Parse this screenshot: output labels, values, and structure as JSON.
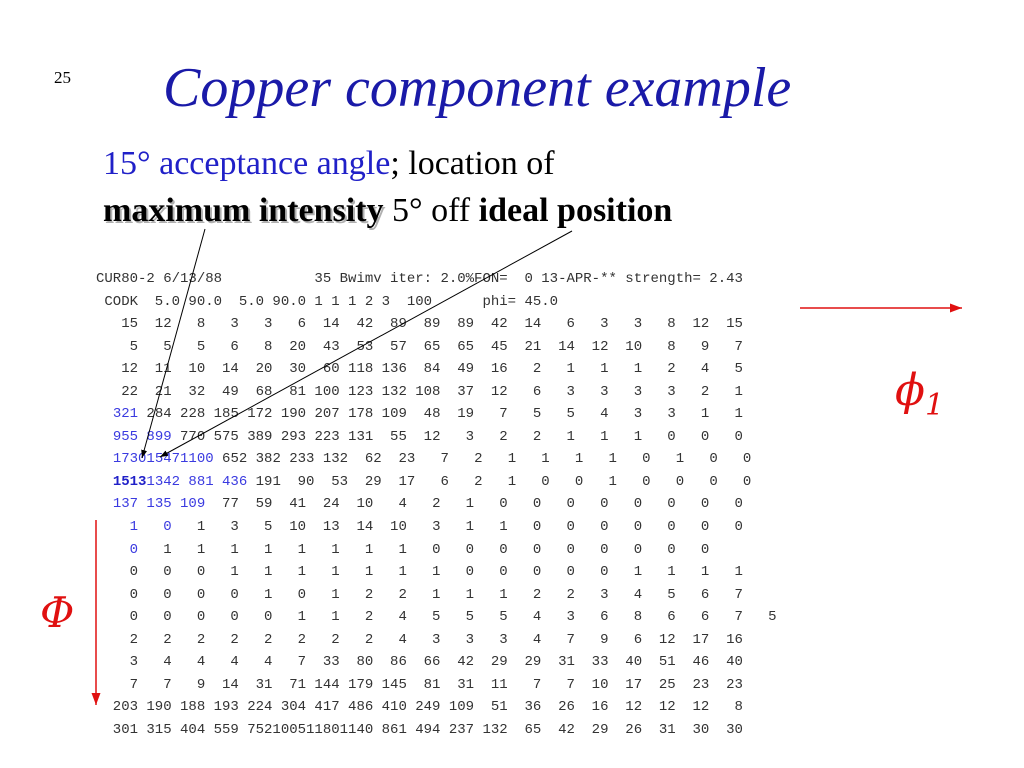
{
  "slide": {
    "number": "25",
    "title": "Copper component example"
  },
  "subtitle": {
    "line1_blue": "15° acceptance angle",
    "line1_rest": "; location of",
    "line2_max": "maximum intensity",
    "line2_mid": " 5° off ",
    "line2_ideal": "ideal position"
  },
  "data": {
    "header1": "CUR80-2 6/13/88           35 Bwimv iter: 2.0%FON=  0 13-APR-** strength= 2.43",
    "header2": " CODK  5.0 90.0  5.0 90.0 1 1 1 2 3  100      phi= 45.0",
    "rows": [
      [
        "   15  12   8   3   3   6  14  42  89  89  89  42  14   6   3   3   8  12  15"
      ],
      [
        "    5   5   5   6   8  20  43  53  57  65  65  45  21  14  12  10   8   9   7"
      ],
      [
        "   12  11  10  14  20  30  60 118 136  84  49  16   2   1   1   1   2   4   5"
      ],
      [
        "   22  21  32  49  68  81 100 123 132 108  37  12   6   3   3   3   3   2   1"
      ],
      [
        "  ",
        "321",
        " 284 228 185 172 190 207 178 109  48  19   7   5   5   4   3   3   1   1"
      ],
      [
        "  ",
        "955 899",
        " 770 575 389 293 223 131  55  12   3   2   2   1   1   1   0   0   0"
      ],
      [
        "  ",
        "173015471100",
        " 652 382 233 132  62  23   7   2   1   1   1   1   0   1   0   0"
      ],
      [
        "  ",
        "1513",
        "",
        "1342 881 436",
        " 191  90  53  29  17   6   2   1   0   0   1   0   0   0   0"
      ],
      [
        "  ",
        "137 135 109",
        "  77  59  41  24  10   4   2   1   0   0   0   0   0   0   0   0"
      ],
      [
        "    ",
        "1   0",
        "   1   3   5  10  13  14  10   3   1   1   0   0   0   0   0   0   0"
      ],
      [
        "    ",
        "0",
        "   1   1   1   1   1   1   1   1   0   0   0   0   0   0   0   0   0"
      ],
      [
        "    0   0   0   1   1   1   1   1   1   1   0   0   0   0   0   1   1   1   1"
      ],
      [
        "    0   0   0   0   1   0   1   2   2   1   1   1   2   2   3   4   5   6   7"
      ],
      [
        "    0   0   0   0   0   1   1   2   4   5   5   5   4   3   6   8   6   6   7   5"
      ],
      [
        "    2   2   2   2   2   2   2   2   4   3   3   3   4   7   9   6  12  17  16"
      ],
      [
        "    3   4   4   4   4   7  33  80  86  66  42  29  29  31  33  40  51  46  40"
      ],
      [
        "    7   7   9  14  31  71 144 179 145  81  31  11   7   7  10  17  25  23  23"
      ],
      [
        "  203 190 188 193 224 304 417 486 410 249 109  51  36  26  16  12  12  12   8"
      ],
      [
        "  301 315 404 559 752100511801140 861 494 237 132  65  42  29  26  31  30  30"
      ]
    ]
  },
  "labels": {
    "phi1_symbol": "ϕ",
    "phi1_sub": "1",
    "Phi_symbol": "Φ"
  },
  "colors": {
    "title": "#1a1aa8",
    "highlight": "#2020c8",
    "annotation_red": "#e01010"
  }
}
